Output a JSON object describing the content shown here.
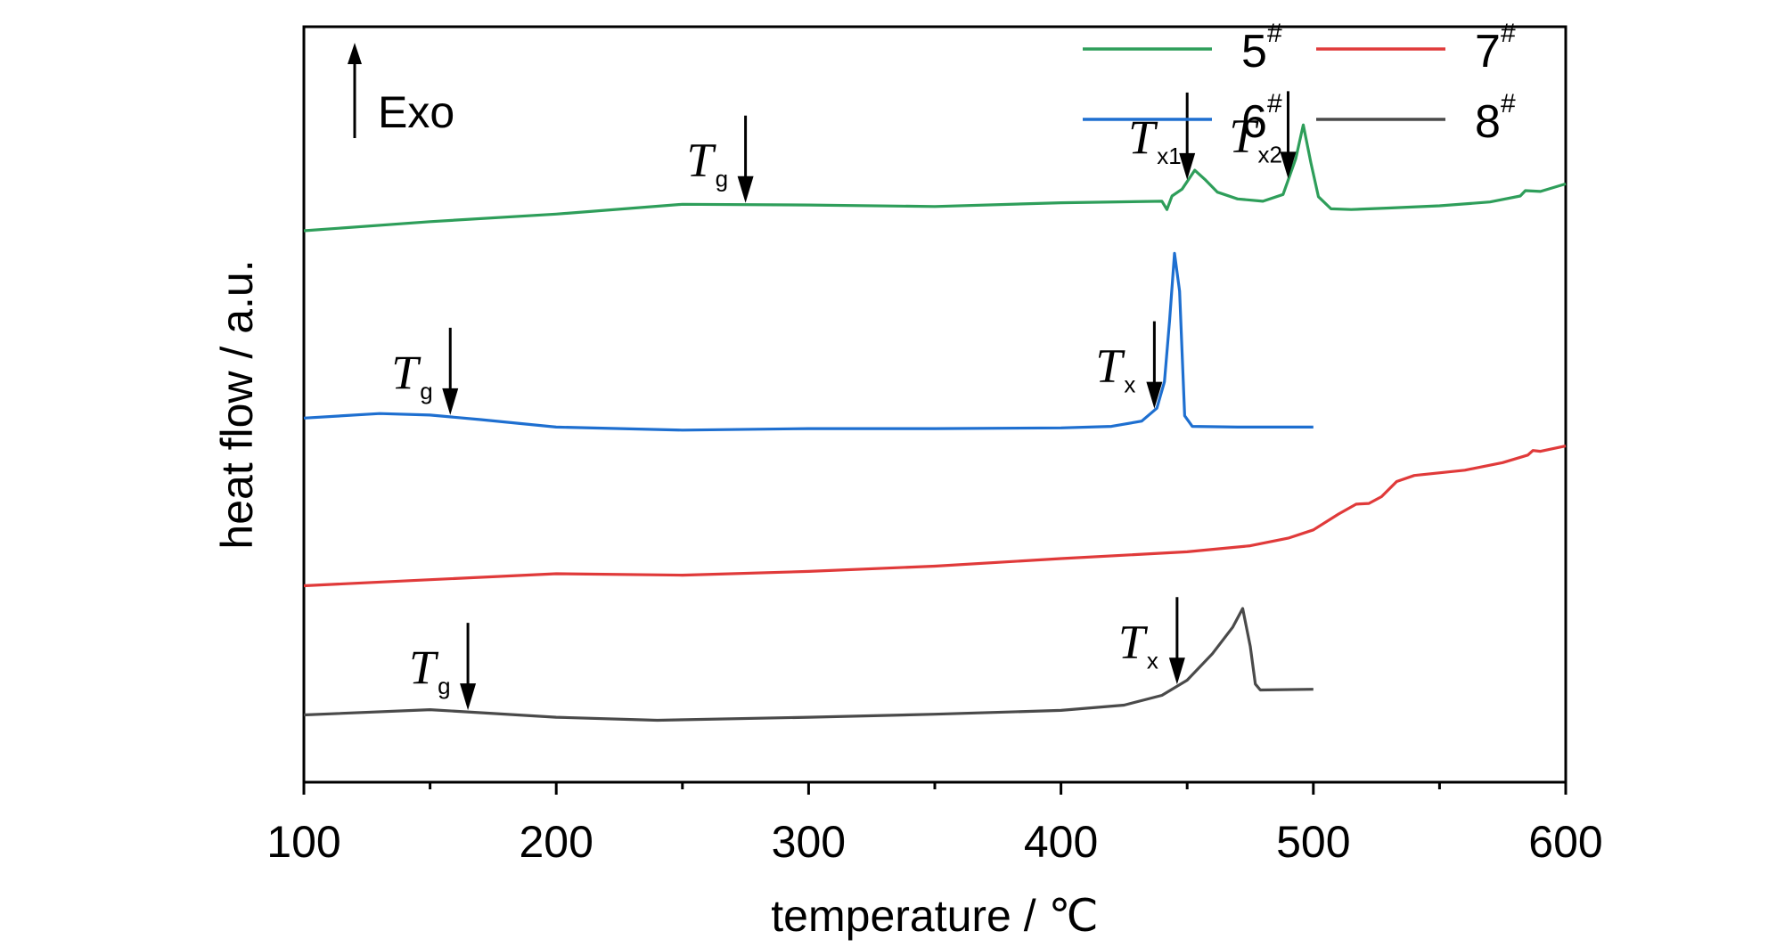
{
  "chart_data": {
    "type": "line",
    "xlabel": "temperature / ℃",
    "ylabel": "heat flow / a.u.",
    "xlim": [
      100,
      600
    ],
    "x_ticks": [
      "100",
      "200",
      "300",
      "400",
      "500",
      "600"
    ],
    "ylim": [
      0,
      100
    ],
    "y_tick_labels": false,
    "grid": false,
    "legend_position": "top-right",
    "exo_label": "Exo",
    "series": [
      {
        "name": "5",
        "name_sup": "#",
        "color": "#2e9e5a",
        "points": [
          [
            100,
            73
          ],
          [
            150,
            74.2
          ],
          [
            200,
            75.2
          ],
          [
            250,
            76.5
          ],
          [
            300,
            76.4
          ],
          [
            350,
            76.2
          ],
          [
            400,
            76.7
          ],
          [
            440,
            76.9
          ],
          [
            442,
            75.8
          ],
          [
            444,
            77.6
          ],
          [
            448,
            78.5
          ],
          [
            453,
            81.0
          ],
          [
            457,
            79.8
          ],
          [
            462,
            78.1
          ],
          [
            470,
            77.2
          ],
          [
            480,
            76.9
          ],
          [
            488,
            77.8
          ],
          [
            493,
            82.5
          ],
          [
            496,
            87.0
          ],
          [
            499,
            82.0
          ],
          [
            502,
            77.5
          ],
          [
            507,
            75.9
          ],
          [
            515,
            75.8
          ],
          [
            530,
            76.0
          ],
          [
            550,
            76.3
          ],
          [
            570,
            76.8
          ],
          [
            582,
            77.6
          ],
          [
            584,
            78.3
          ],
          [
            590,
            78.2
          ],
          [
            600,
            79.2
          ]
        ]
      },
      {
        "name": "6",
        "name_sup": "#",
        "color": "#1e6fd0",
        "points": [
          [
            100,
            48.2
          ],
          [
            130,
            48.8
          ],
          [
            150,
            48.6
          ],
          [
            170,
            48.0
          ],
          [
            200,
            47.0
          ],
          [
            250,
            46.6
          ],
          [
            300,
            46.8
          ],
          [
            350,
            46.8
          ],
          [
            400,
            46.9
          ],
          [
            420,
            47.1
          ],
          [
            432,
            47.8
          ],
          [
            438,
            49.5
          ],
          [
            441,
            53.0
          ],
          [
            443,
            61.0
          ],
          [
            445,
            70.0
          ],
          [
            447,
            65.0
          ],
          [
            449,
            48.5
          ],
          [
            452,
            47.1
          ],
          [
            470,
            47.0
          ],
          [
            500,
            47.0
          ]
        ]
      },
      {
        "name": "7",
        "name_sup": "#",
        "color": "#e03a3a",
        "points": [
          [
            100,
            26.0
          ],
          [
            150,
            26.8
          ],
          [
            200,
            27.6
          ],
          [
            250,
            27.4
          ],
          [
            300,
            27.9
          ],
          [
            350,
            28.6
          ],
          [
            400,
            29.6
          ],
          [
            450,
            30.5
          ],
          [
            475,
            31.3
          ],
          [
            490,
            32.3
          ],
          [
            500,
            33.4
          ],
          [
            510,
            35.5
          ],
          [
            517,
            36.8
          ],
          [
            522,
            36.9
          ],
          [
            527,
            37.8
          ],
          [
            533,
            39.8
          ],
          [
            540,
            40.6
          ],
          [
            560,
            41.3
          ],
          [
            575,
            42.3
          ],
          [
            585,
            43.3
          ],
          [
            587,
            43.9
          ],
          [
            590,
            43.8
          ],
          [
            600,
            44.5
          ]
        ]
      },
      {
        "name": "8",
        "name_sup": "#",
        "color": "#4a4a4a",
        "points": [
          [
            100,
            8.9
          ],
          [
            150,
            9.6
          ],
          [
            200,
            8.6
          ],
          [
            240,
            8.2
          ],
          [
            300,
            8.6
          ],
          [
            350,
            9.0
          ],
          [
            400,
            9.5
          ],
          [
            425,
            10.2
          ],
          [
            440,
            11.5
          ],
          [
            450,
            13.5
          ],
          [
            460,
            17.0
          ],
          [
            468,
            20.5
          ],
          [
            472,
            23.0
          ],
          [
            475,
            18.0
          ],
          [
            477,
            13.0
          ],
          [
            479,
            12.2
          ],
          [
            500,
            12.3
          ]
        ]
      }
    ],
    "annotations": [
      {
        "main": "T",
        "sub": "g",
        "x": 275,
        "series": "5"
      },
      {
        "main": "T",
        "sub": "x1",
        "x": 450,
        "series": "5"
      },
      {
        "main": "T",
        "sub": "x2",
        "x": 490,
        "series": "5"
      },
      {
        "main": "T",
        "sub": "g",
        "x": 158,
        "series": "6"
      },
      {
        "main": "T",
        "sub": "x",
        "x": 437,
        "series": "6"
      },
      {
        "main": "T",
        "sub": "g",
        "x": 165,
        "series": "8"
      },
      {
        "main": "T",
        "sub": "x",
        "x": 446,
        "series": "8"
      }
    ]
  }
}
